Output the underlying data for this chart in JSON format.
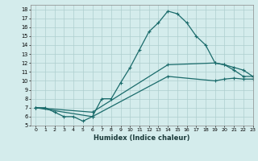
{
  "xlabel": "Humidex (Indice chaleur)",
  "xlim": [
    -0.5,
    23
  ],
  "ylim": [
    5,
    18.5
  ],
  "yticks": [
    5,
    6,
    7,
    8,
    9,
    10,
    11,
    12,
    13,
    14,
    15,
    16,
    17,
    18
  ],
  "xticks": [
    0,
    1,
    2,
    3,
    4,
    5,
    6,
    7,
    8,
    9,
    10,
    11,
    12,
    13,
    14,
    15,
    16,
    17,
    18,
    19,
    20,
    21,
    22,
    23
  ],
  "xtick_labels": [
    "0",
    "1",
    "2",
    "3",
    "4",
    "5",
    "6",
    "7",
    "8",
    "9",
    "10",
    "11",
    "12",
    "13",
    "14",
    "15",
    "16",
    "17",
    "18",
    "19",
    "20",
    "21",
    "22",
    "23"
  ],
  "background_color": "#d4ecec",
  "grid_color": "#aecece",
  "line_color": "#1a6b6b",
  "line1_x": [
    0,
    1,
    2,
    3,
    4,
    5,
    6,
    7,
    8,
    9,
    10,
    11,
    12,
    13,
    14,
    15,
    16,
    17,
    18,
    19,
    20,
    21,
    22,
    23
  ],
  "line1_y": [
    7.0,
    7.0,
    6.5,
    6.0,
    6.0,
    5.5,
    6.0,
    8.0,
    8.0,
    9.8,
    11.5,
    13.5,
    15.5,
    16.5,
    17.8,
    17.5,
    16.5,
    15.0,
    14.0,
    12.0,
    11.8,
    11.2,
    10.5,
    10.5
  ],
  "line2_x": [
    0,
    6,
    14,
    19,
    20,
    21,
    22,
    23
  ],
  "line2_y": [
    7.0,
    6.5,
    11.8,
    12.0,
    11.8,
    11.5,
    11.2,
    10.5
  ],
  "line3_x": [
    0,
    6,
    14,
    19,
    20,
    21,
    22,
    23
  ],
  "line3_y": [
    7.0,
    6.0,
    10.5,
    10.0,
    10.2,
    10.3,
    10.2,
    10.2
  ]
}
